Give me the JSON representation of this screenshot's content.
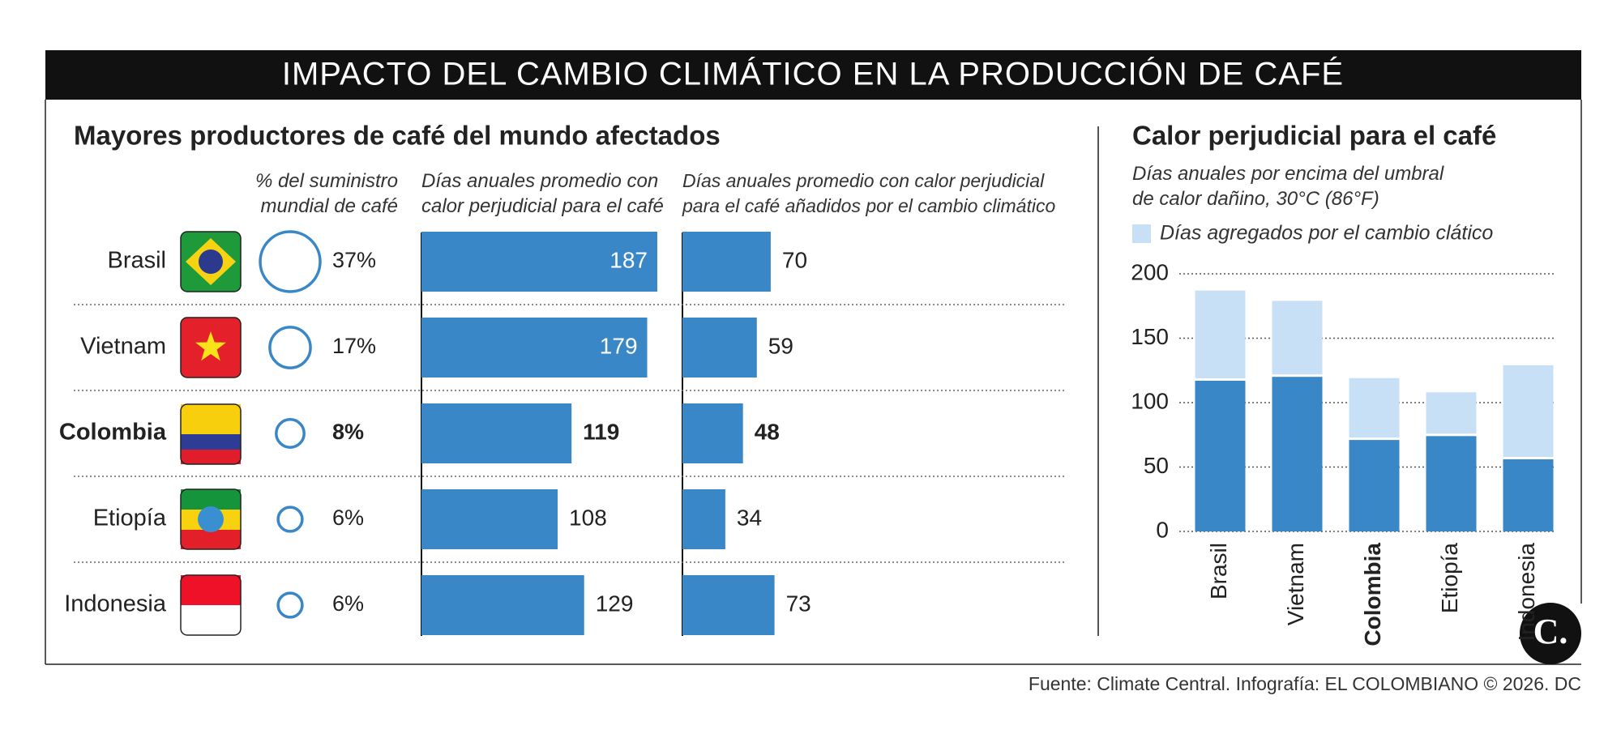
{
  "header": {
    "title": "IMPACTO DEL CAMBIO CLIMÁTICO EN LA PRODUCCIÓN DE CAFÉ"
  },
  "chart_data": [
    {
      "type": "table",
      "title": "Mayores productores de café del mundo afectados",
      "categories": [
        "Brasil",
        "Vietnam",
        "Colombia",
        "Etiopía",
        "Indonesia"
      ],
      "highlight": "Colombia",
      "series": [
        {
          "name": "% del suministro mundial de café",
          "type": "bubble",
          "color": "#3a87c8",
          "values": [
            37,
            17,
            8,
            6,
            6
          ],
          "value_labels": [
            "37%",
            "17%",
            "8%",
            "6%",
            "6%"
          ]
        },
        {
          "name": "Días anuales promedio con calor perjudicial para el café",
          "type": "barh",
          "color": "#3a87c8",
          "values": [
            187,
            179,
            119,
            108,
            129
          ]
        },
        {
          "name": "Días anuales promedio con calor perjudicial para el café añadidos por el cambio climático",
          "type": "barh",
          "color": "#3a87c8",
          "values": [
            70,
            59,
            48,
            34,
            73
          ]
        }
      ]
    },
    {
      "type": "bar",
      "stacked": true,
      "title": "Calor perjudicial para el café",
      "subtitle": "Días anuales por encima del umbral de calor dañino, 30°C (86°F)",
      "categories": [
        "Brasil",
        "Vietnam",
        "Colombia",
        "Etiopía",
        "Indonesia"
      ],
      "highlight": "Colombia",
      "series": [
        {
          "color": "#3a87c8",
          "values": [
            117,
            120,
            71,
            74,
            56
          ]
        },
        {
          "name": "Días agregados por el cambio clático",
          "color": "#c8e0f5",
          "values": [
            70,
            59,
            48,
            34,
            73
          ]
        }
      ],
      "ylim": [
        0,
        200
      ],
      "yticks": [
        0,
        50,
        100,
        150,
        200
      ],
      "grid": true,
      "legend": "top-left"
    }
  ],
  "source": "Fuente: Climate Central. Infografía: EL COLOMBIANO © 2026. DC",
  "logo": "C."
}
